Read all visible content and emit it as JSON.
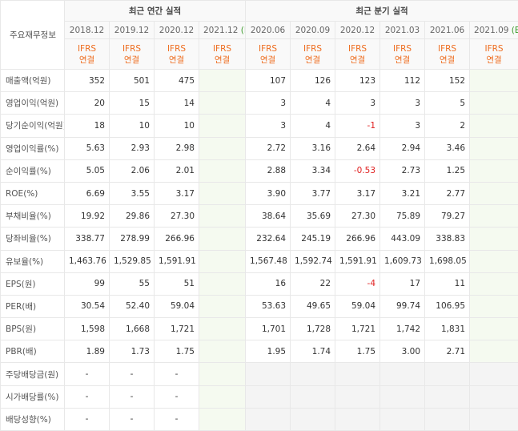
{
  "header": {
    "label": "주요재무정보",
    "annual_title": "최근 연간 실적",
    "quarter_title": "최근 분기 실적"
  },
  "columns": [
    {
      "date": "2018.12",
      "sub1": "IFRS",
      "sub2": "연결"
    },
    {
      "date": "2019.12",
      "sub1": "IFRS",
      "sub2": "연결"
    },
    {
      "date": "2020.12",
      "sub1": "IFRS",
      "sub2": "연결"
    },
    {
      "date": "2021.12",
      "est": "(E)",
      "sub1": "IFRS",
      "sub2": "연결"
    },
    {
      "date": "2020.06",
      "sub1": "IFRS",
      "sub2": "연결"
    },
    {
      "date": "2020.09",
      "sub1": "IFRS",
      "sub2": "연결"
    },
    {
      "date": "2020.12",
      "sub1": "IFRS",
      "sub2": "연결"
    },
    {
      "date": "2021.03",
      "sub1": "IFRS",
      "sub2": "연결"
    },
    {
      "date": "2021.06",
      "sub1": "IFRS",
      "sub2": "연결"
    },
    {
      "date": "2021.09",
      "est": "(E)",
      "sub1": "IFRS",
      "sub2": "연결"
    }
  ],
  "rows": [
    {
      "label": "매출액(억원)",
      "cells": [
        "352",
        "501",
        "475",
        null,
        "107",
        "126",
        "123",
        "112",
        "152",
        null
      ]
    },
    {
      "label": "영업이익(억원)",
      "cells": [
        "20",
        "15",
        "14",
        null,
        "3",
        "4",
        "3",
        "3",
        "5",
        null
      ]
    },
    {
      "label": "당기순이익(억원)",
      "cells": [
        "18",
        "10",
        "10",
        null,
        "3",
        "4",
        "-1",
        "3",
        "2",
        null
      ]
    },
    {
      "label": "영업이익률(%)",
      "cells": [
        "5.63",
        "2.93",
        "2.98",
        null,
        "2.72",
        "3.16",
        "2.64",
        "2.94",
        "3.46",
        null
      ]
    },
    {
      "label": "순이익률(%)",
      "cells": [
        "5.05",
        "2.06",
        "2.01",
        null,
        "2.88",
        "3.34",
        "-0.53",
        "2.73",
        "1.25",
        null
      ]
    },
    {
      "label": "ROE(%)",
      "cells": [
        "6.69",
        "3.55",
        "3.17",
        null,
        "3.90",
        "3.77",
        "3.17",
        "3.21",
        "2.77",
        null
      ]
    },
    {
      "label": "부채비율(%)",
      "cells": [
        "19.92",
        "29.86",
        "27.30",
        null,
        "38.64",
        "35.69",
        "27.30",
        "75.89",
        "79.27",
        null
      ]
    },
    {
      "label": "당좌비율(%)",
      "cells": [
        "338.77",
        "278.99",
        "266.96",
        null,
        "232.64",
        "245.19",
        "266.96",
        "443.09",
        "338.83",
        null
      ]
    },
    {
      "label": "유보율(%)",
      "cells": [
        "1,463.76",
        "1,529.85",
        "1,591.91",
        null,
        "1,567.48",
        "1,592.74",
        "1,591.91",
        "1,609.73",
        "1,698.05",
        null
      ]
    },
    {
      "label": "EPS(원)",
      "cells": [
        "99",
        "55",
        "51",
        null,
        "16",
        "22",
        "-4",
        "17",
        "11",
        null
      ]
    },
    {
      "label": "PER(배)",
      "cells": [
        "30.54",
        "52.40",
        "59.04",
        null,
        "53.63",
        "49.65",
        "59.04",
        "99.74",
        "106.95",
        null
      ]
    },
    {
      "label": "BPS(원)",
      "cells": [
        "1,598",
        "1,668",
        "1,721",
        null,
        "1,701",
        "1,728",
        "1,721",
        "1,742",
        "1,831",
        null
      ]
    },
    {
      "label": "PBR(배)",
      "cells": [
        "1.89",
        "1.73",
        "1.75",
        null,
        "1.95",
        "1.74",
        "1.75",
        "3.00",
        "2.71",
        null
      ]
    },
    {
      "label": "주당배당금(원)",
      "cells": [
        "-",
        "-",
        "-",
        null,
        null,
        null,
        null,
        null,
        null,
        null
      ]
    },
    {
      "label": "시가배당률(%)",
      "cells": [
        "-",
        "-",
        "-",
        null,
        null,
        null,
        null,
        null,
        null,
        null
      ]
    },
    {
      "label": "배당성향(%)",
      "cells": [
        "-",
        "-",
        "-",
        null,
        null,
        null,
        null,
        null,
        null,
        null
      ]
    }
  ]
}
